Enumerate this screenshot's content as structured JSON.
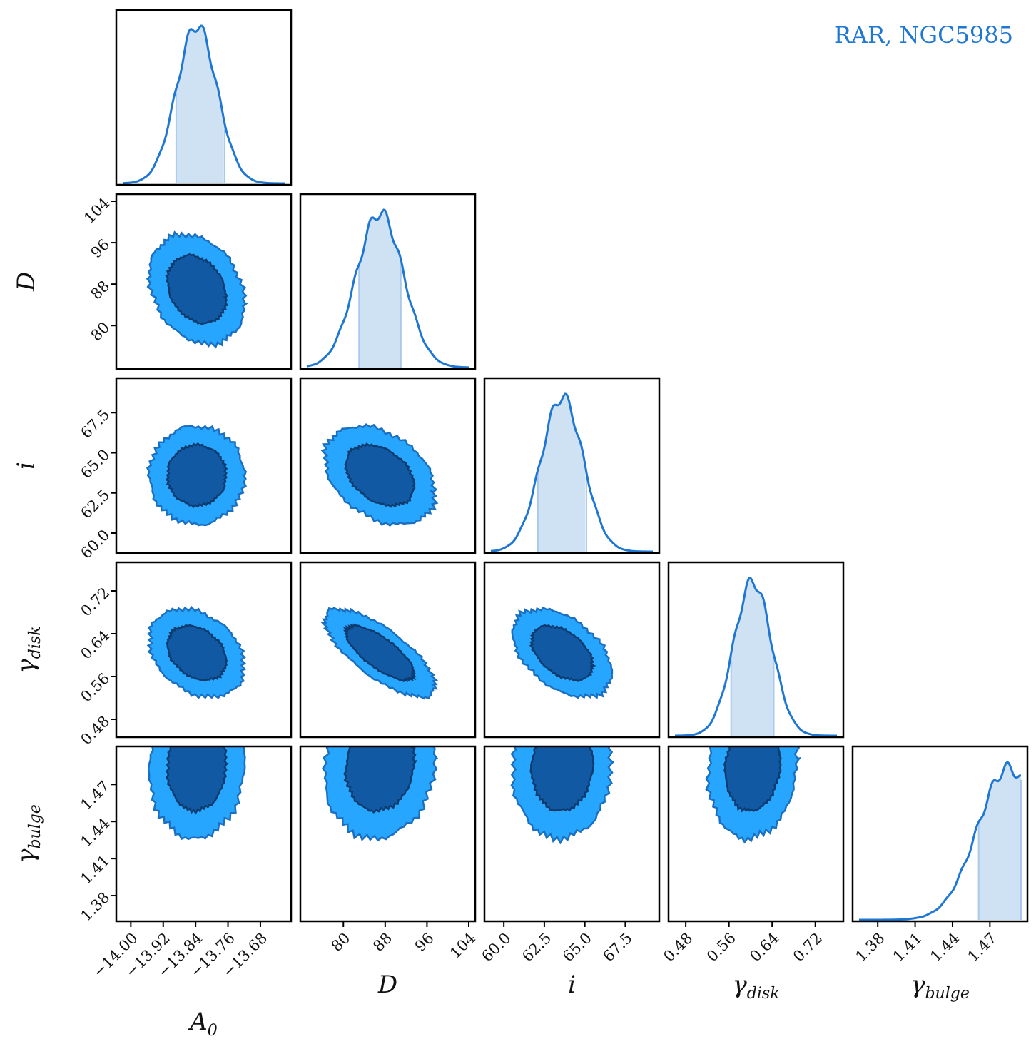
{
  "chart_data": {
    "type": "corner",
    "title": "RAR, NGC5985",
    "title_color": "#1f77d4",
    "legend_position": "top-right",
    "colors": {
      "line": "#1f77d4",
      "shade": "#cfe2f3",
      "shade_edge": "#a9c9ec",
      "contour_outer": "#26a6ff",
      "contour_inner": "#1259a3",
      "contour_edge": "#1b6fc0",
      "contour_inner_edge": "#0d3b6e",
      "frame": "#000000"
    },
    "parameters": [
      {
        "name": "A0",
        "label": "A",
        "subscript": "0",
        "range": [
          -14.02,
          -13.62
        ],
        "ticks": [
          -14.0,
          -13.92,
          -13.84,
          -13.76,
          -13.68
        ],
        "tick_labels": [
          "−14.00",
          "−13.92",
          "−13.84",
          "−13.76",
          "−13.68"
        ],
        "median": -13.837,
        "sigma": 0.05,
        "ci": [
          -13.888,
          -13.768
        ]
      },
      {
        "name": "D",
        "label": "D",
        "subscript": "",
        "range": [
          73,
          104
        ],
        "ticks": [
          80,
          88,
          96,
          104
        ],
        "tick_labels": [
          "80",
          "88",
          "96",
          "104"
        ],
        "median": 87.0,
        "sigma": 4.5,
        "ci": [
          83.0,
          91.0
        ]
      },
      {
        "name": "i",
        "label": "i",
        "subscript": "",
        "range": [
          59.2,
          69.2
        ],
        "ticks": [
          60.0,
          62.5,
          65.0,
          67.5
        ],
        "tick_labels": [
          "60.0",
          "62.5",
          "65.0",
          "67.5"
        ],
        "median": 63.6,
        "sigma": 1.3,
        "ci": [
          62.1,
          65.1
        ]
      },
      {
        "name": "gamma_disk",
        "label": "γ",
        "subscript": "disk",
        "range": [
          0.46,
          0.76
        ],
        "ticks": [
          0.48,
          0.56,
          0.64,
          0.72
        ],
        "tick_labels": [
          "0.48",
          "0.56",
          "0.64",
          "0.72"
        ],
        "median": 0.604,
        "sigma": 0.035,
        "ci": [
          0.564,
          0.643
        ]
      },
      {
        "name": "gamma_bulge",
        "label": "γ",
        "subscript": "bulge",
        "range": [
          1.365,
          1.495
        ],
        "ticks": [
          1.38,
          1.41,
          1.44,
          1.47
        ],
        "tick_labels": [
          "1.38",
          "1.41",
          "1.44",
          "1.47"
        ],
        "median": 1.485,
        "sigma": 0.025,
        "ci": [
          1.461,
          1.495
        ]
      }
    ],
    "correlations": [
      {
        "pair": [
          "A0",
          "D"
        ],
        "rho": -0.25
      },
      {
        "pair": [
          "A0",
          "i"
        ],
        "rho": 0.0
      },
      {
        "pair": [
          "D",
          "i"
        ],
        "rho": -0.35
      },
      {
        "pair": [
          "A0",
          "gamma_disk"
        ],
        "rho": -0.3
      },
      {
        "pair": [
          "D",
          "gamma_disk"
        ],
        "rho": -0.75
      },
      {
        "pair": [
          "i",
          "gamma_disk"
        ],
        "rho": -0.45
      },
      {
        "pair": [
          "A0",
          "gamma_bulge"
        ],
        "rho": 0.05
      },
      {
        "pair": [
          "D",
          "gamma_bulge"
        ],
        "rho": 0.1
      },
      {
        "pair": [
          "i",
          "gamma_bulge"
        ],
        "rho": 0.05
      },
      {
        "pair": [
          "gamma_disk",
          "gamma_bulge"
        ],
        "rho": 0.1
      }
    ],
    "contour_levels": [
      "68%",
      "95%"
    ]
  }
}
